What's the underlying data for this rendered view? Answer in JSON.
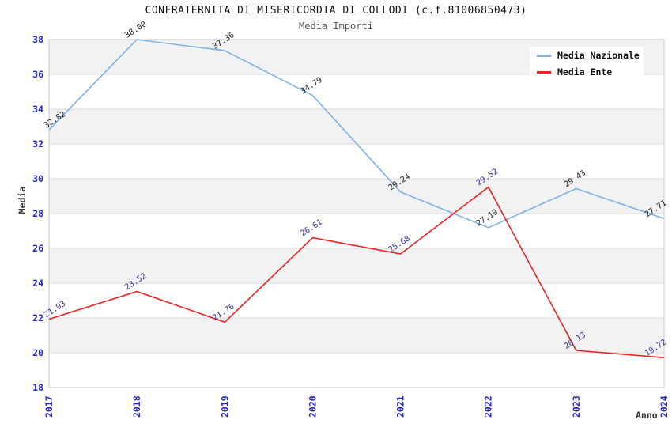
{
  "chart_data": {
    "type": "line",
    "title": "CONFRATERNITA DI MISERICORDIA DI COLLODI (c.f.81006850473)",
    "subtitle": "Media Importi",
    "xlabel": "Anno",
    "ylabel": "Media",
    "x": [
      2017,
      2018,
      2019,
      2020,
      2021,
      2022,
      2023,
      2024
    ],
    "series": [
      {
        "name": "Media Nazionale",
        "color": "#7EB2E8",
        "label_color": "#1a1a1a",
        "values": [
          32.82,
          38.0,
          37.36,
          34.79,
          29.24,
          27.19,
          29.43,
          27.71
        ]
      },
      {
        "name": "Media Ente",
        "color": "#EE2222",
        "label_color": "#333399",
        "values": [
          21.93,
          23.52,
          21.76,
          26.61,
          25.68,
          29.52,
          20.13,
          19.72
        ]
      }
    ],
    "ylim": [
      18,
      38
    ],
    "ytick_step": 2,
    "yticks": [
      18,
      20,
      22,
      24,
      26,
      28,
      30,
      32,
      34,
      36,
      38
    ],
    "grid": "horizontal-bands",
    "legend_position": "top-right",
    "colors": {
      "tick": "#2626cc",
      "band": "#f2f2f2",
      "band_alt": "#ffffff",
      "grid": "#d9d9d9",
      "border": "#c8c8c8"
    }
  }
}
